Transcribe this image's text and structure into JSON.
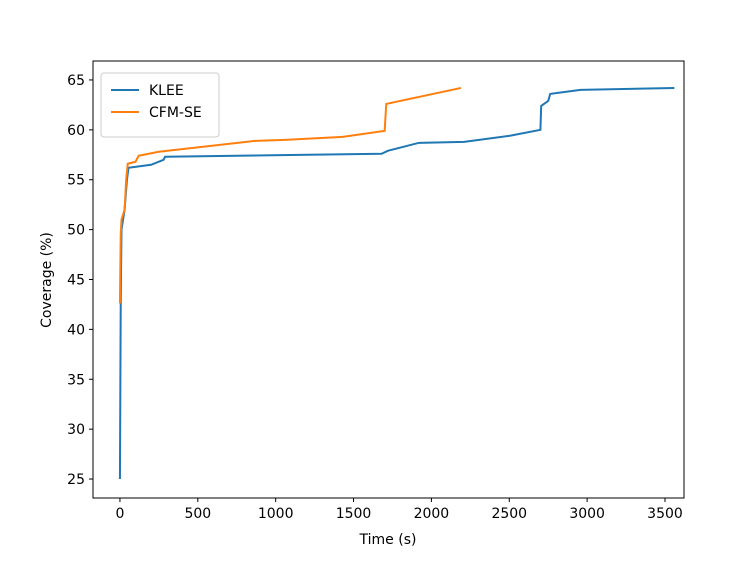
{
  "chart_data": {
    "type": "line",
    "xlabel": "Time (s)",
    "ylabel": "Coverage (%)",
    "xlim": [
      -173,
      3622
    ],
    "ylim": [
      23.1,
      66.9
    ],
    "xticks": [
      0,
      500,
      1000,
      1500,
      2000,
      2500,
      3000,
      3500
    ],
    "yticks": [
      25,
      30,
      35,
      40,
      45,
      50,
      55,
      60,
      65
    ],
    "grid": false,
    "legend": "upper-left",
    "series": [
      {
        "name": "KLEE",
        "color": "#1f77b4",
        "x": [
          0,
          5,
          10,
          20,
          30,
          45,
          55,
          200,
          280,
          290,
          1680,
          1720,
          1920,
          2210,
          2500,
          2700,
          2705,
          2750,
          2763,
          2956,
          3560
        ],
        "values": [
          25,
          42.6,
          50,
          51,
          52,
          55,
          56.2,
          56.5,
          57,
          57.3,
          57.6,
          57.9,
          58.7,
          58.8,
          59.4,
          60.0,
          62.4,
          62.9,
          63.6,
          64.0,
          64.2
        ]
      },
      {
        "name": "CFM-SE",
        "color": "#ff7f0e",
        "x": [
          0,
          5,
          10,
          30,
          40,
          50,
          100,
          120,
          250,
          870,
          1060,
          1430,
          1700,
          1710,
          2190
        ],
        "values": [
          42.6,
          49.5,
          51,
          52,
          55,
          56.6,
          56.8,
          57.4,
          57.8,
          58.9,
          59.0,
          59.3,
          59.9,
          62.6,
          64.2
        ]
      }
    ]
  }
}
